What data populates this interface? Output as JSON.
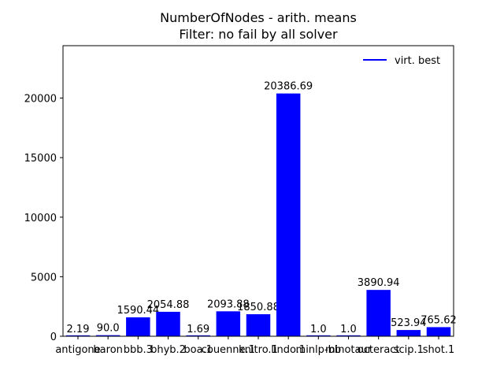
{
  "chart_data": {
    "type": "bar",
    "title": "NumberOfNodes - arith. means",
    "subtitle": "Filter: no fail by all solver",
    "xlabel": "",
    "ylabel": "",
    "categories": [
      "antigone",
      "baron",
      "bbb.3",
      "bhyb.2",
      "boa.1",
      "couenne.1",
      "knitro.1",
      "lindo.1",
      "minlp-bb",
      "minotaur",
      "octeract",
      "scip.1",
      "shot.1"
    ],
    "category_tick_labels": [
      "antigone",
      "baron",
      "bbb.3",
      "bhyb.2",
      "boa.1",
      "couenne.1",
      "knitro.1",
      "lindo.1",
      "minlp-bb",
      "minotaur",
      "octeract",
      "scip.1",
      "shot.1"
    ],
    "series": [
      {
        "name": "virt. best",
        "color": "#0000ff",
        "values": [
          2.19,
          90.0,
          1590.44,
          2054.88,
          1.69,
          2093.88,
          1850.88,
          20386.69,
          1.0,
          1.0,
          3890.94,
          523.94,
          765.62
        ],
        "value_labels": [
          "2.19",
          "90.0",
          "1590.44",
          "2054.88",
          "1.69",
          "2093.88",
          "1850.88",
          "20386.69",
          "1.0",
          "1.0",
          "3890.94",
          "523.94",
          "765.62"
        ]
      }
    ],
    "ylim": [
      0,
      24400
    ],
    "yticks": [
      0,
      5000,
      10000,
      15000,
      20000
    ],
    "ytick_labels": [
      "0",
      "5000",
      "10000",
      "15000",
      "20000"
    ],
    "grid": false,
    "legend_position": "top-right"
  }
}
